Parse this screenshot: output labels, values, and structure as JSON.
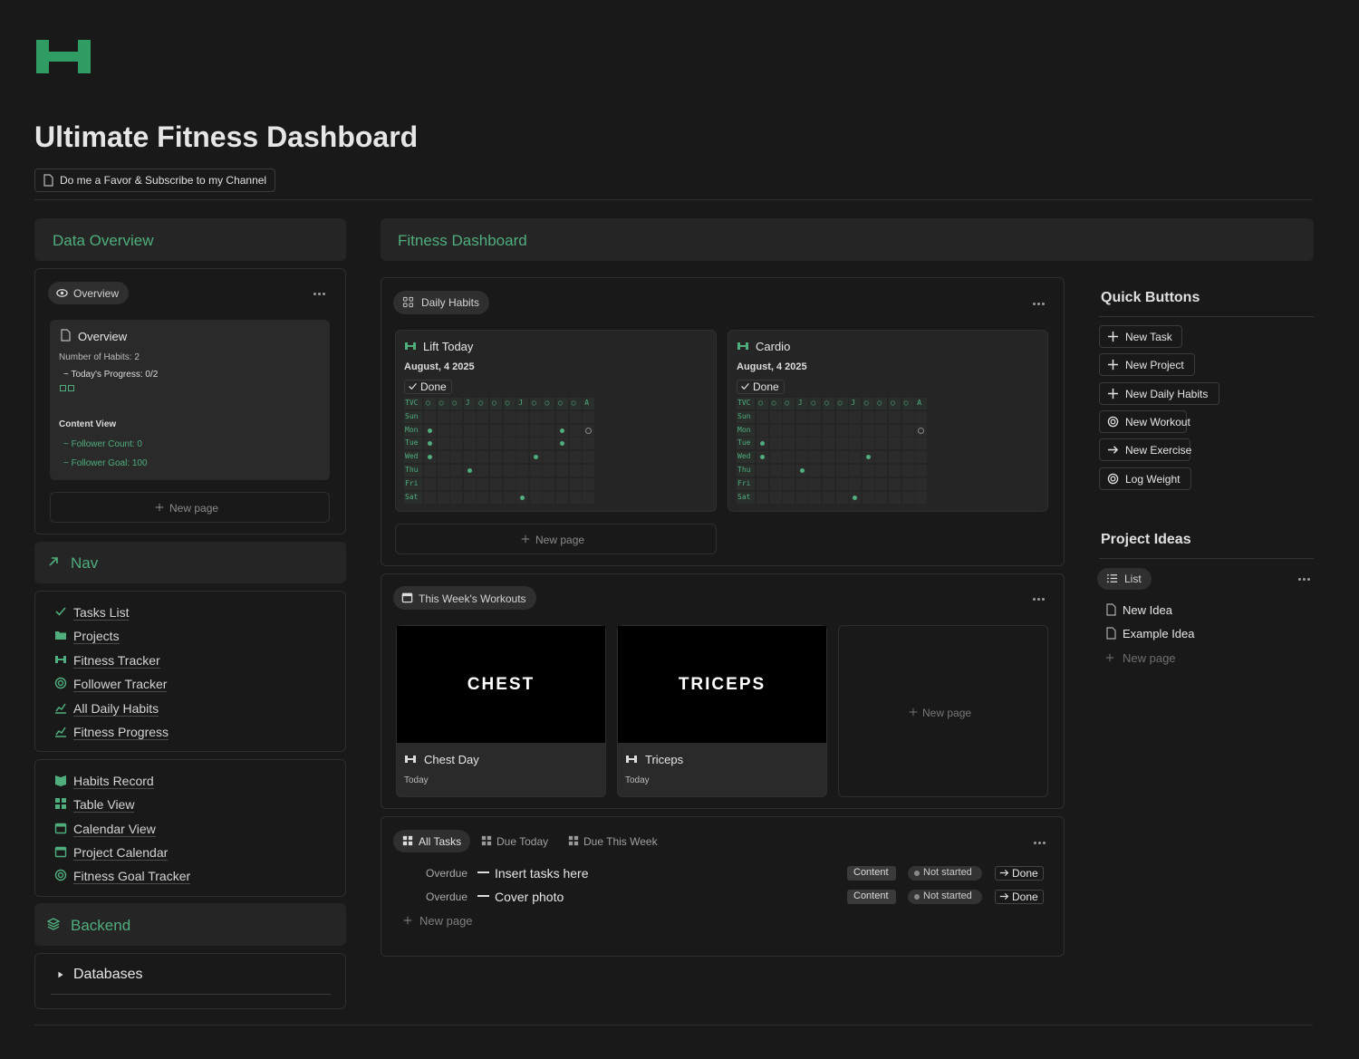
{
  "header": {
    "title": "Ultimate Fitness Dashboard",
    "button": "Do me a Favor & Subscribe to my Channel"
  },
  "left": {
    "data_overview": "Data Overview",
    "overview_tab": "Overview",
    "card": {
      "title": "Overview",
      "habits": "Number of Habits: 2",
      "progress": "~ Today's Progress: 0/2",
      "content_view": "Content View",
      "followers": "~ Follower Count: 0",
      "goal": "~ Follower Goal: 100"
    },
    "new_page": "New page",
    "nav_title": "Nav",
    "nav": [
      "Tasks List",
      "Projects",
      "Fitness Tracker",
      "Follower Tracker",
      "All Daily Habits",
      "Fitness Progress"
    ],
    "nav2": [
      "Habits Record",
      "Table View",
      "Calendar View",
      "Project Calendar",
      "Fitness Goal Tracker"
    ],
    "backend": "Backend",
    "databases": "Databases"
  },
  "main": {
    "title": "Fitness Dashboard",
    "habits": {
      "tab": "Daily Habits",
      "cards": [
        {
          "title": "Lift Today",
          "date": "August, 4 2025",
          "done": "Done"
        },
        {
          "title": "Cardio",
          "date": "August, 4 2025",
          "done": "Done"
        }
      ],
      "grid_header": [
        "TVC",
        "○",
        "○",
        "○",
        "J",
        "○",
        "○",
        "○",
        "J",
        "○",
        "○",
        "○",
        "○",
        "A"
      ],
      "days": [
        "Sun",
        "Mon",
        "Tue",
        "Wed",
        "Thu",
        "Fri",
        "Sat"
      ],
      "new_page": "New page"
    },
    "workouts": {
      "tab": "This Week's Workouts",
      "cards": [
        {
          "cover": "CHEST",
          "title": "Chest Day",
          "date": "Today"
        },
        {
          "cover": "TRICEPS",
          "title": "Triceps",
          "date": "Today"
        }
      ],
      "new_page": "New page"
    },
    "tasks": {
      "tabs": [
        "All Tasks",
        "Due Today",
        "Due This Week"
      ],
      "rows": [
        {
          "status": "Overdue",
          "name": "Insert tasks here",
          "tag": "Content",
          "state": "Not started",
          "action": "Done"
        },
        {
          "status": "Overdue",
          "name": "Cover photo",
          "tag": "Content",
          "state": "Not started",
          "action": "Done"
        }
      ],
      "new_page": "New page"
    }
  },
  "right": {
    "quick_title": "Quick Buttons",
    "buttons": [
      "New Task",
      "New Project",
      "New Daily Habits",
      "New Workout",
      "New Exercise",
      "Log Weight"
    ],
    "ideas_title": "Project Ideas",
    "list_tab": "List",
    "ideas": [
      "New Idea",
      "Example Idea"
    ],
    "new_page": "New page"
  }
}
